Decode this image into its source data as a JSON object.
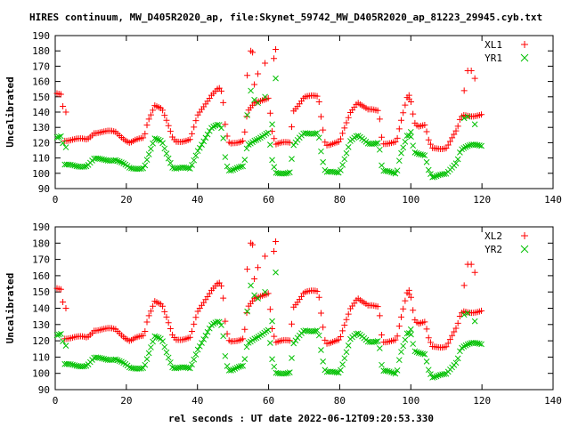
{
  "title": "HIRES continuum, MW_D405R2020_ap, file:Skynet_59742_MW_D405R2020_ap_81223_29945.cyb.txt",
  "xlabel": "rel seconds : UT date 2022-06-12T09:20:53.330",
  "colors": {
    "red": "#ff0000",
    "green": "#00c000",
    "frame": "#000000"
  },
  "chart_data": [
    {
      "type": "scatter",
      "panel": "top",
      "ylabel": "Uncalibrated",
      "xlim": [
        0,
        140
      ],
      "ylim": [
        90,
        190
      ],
      "xticks": [
        0,
        20,
        40,
        60,
        80,
        100,
        120,
        140
      ],
      "yticks": [
        90,
        100,
        110,
        120,
        130,
        140,
        150,
        160,
        170,
        180,
        190
      ],
      "grid": false,
      "legend_position": "top-right",
      "series": [
        {
          "name": "XL1",
          "marker": "plus",
          "color": "#ff0000",
          "points": []
        },
        {
          "name": "YR1",
          "marker": "cross",
          "color": "#00c000",
          "points": []
        }
      ]
    },
    {
      "type": "scatter",
      "panel": "bottom",
      "ylabel": "Uncalibrated",
      "xlim": [
        0,
        140
      ],
      "ylim": [
        90,
        190
      ],
      "xticks": [
        0,
        20,
        40,
        60,
        80,
        100,
        120,
        140
      ],
      "yticks": [
        90,
        100,
        110,
        120,
        130,
        140,
        150,
        160,
        170,
        180,
        190
      ],
      "grid": false,
      "legend_position": "top-right",
      "series": [
        {
          "name": "XL2",
          "marker": "plus",
          "color": "#ff0000",
          "points": []
        },
        {
          "name": "YR2",
          "marker": "cross",
          "color": "#00c000",
          "points": []
        }
      ]
    }
  ]
}
